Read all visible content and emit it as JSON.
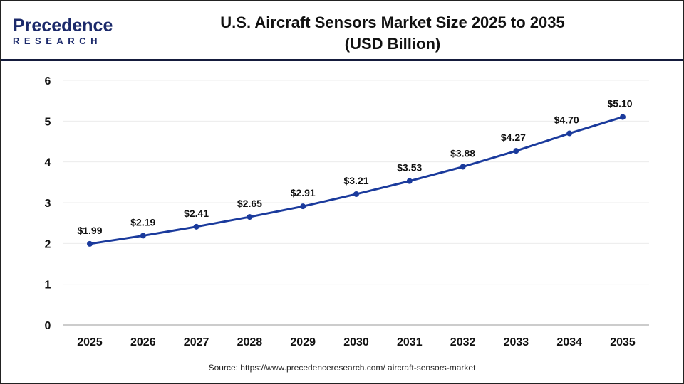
{
  "logo": {
    "line1": "Precedence",
    "line2": "RESEARCH"
  },
  "title_line1": "U.S. Aircraft Sensors Market Size 2025 to 2035",
  "title_line2": "(USD Billion)",
  "source": "Source: https://www.precedenceresearch.com/ aircraft-sensors-market",
  "colors": {
    "line": "#1a3a9c",
    "header_rule": "#151b3d"
  },
  "chart_data": {
    "type": "line",
    "title": "U.S. Aircraft Sensors Market Size 2025 to 2035 (USD Billion)",
    "categories": [
      "2025",
      "2026",
      "2027",
      "2028",
      "2029",
      "2030",
      "2031",
      "2032",
      "2033",
      "2034",
      "2035"
    ],
    "values": [
      1.99,
      2.19,
      2.41,
      2.65,
      2.91,
      3.21,
      3.53,
      3.88,
      4.27,
      4.7,
      5.1
    ],
    "data_labels": [
      "$1.99",
      "$2.19",
      "$2.41",
      "$2.65",
      "$2.91",
      "$3.21",
      "$3.53",
      "$3.88",
      "$4.27",
      "$4.70",
      "$5.10"
    ],
    "yticks": [
      "0",
      "1",
      "2",
      "3",
      "4",
      "5",
      "6"
    ],
    "ylim": [
      0,
      6
    ],
    "grid": true,
    "legend": "none"
  }
}
